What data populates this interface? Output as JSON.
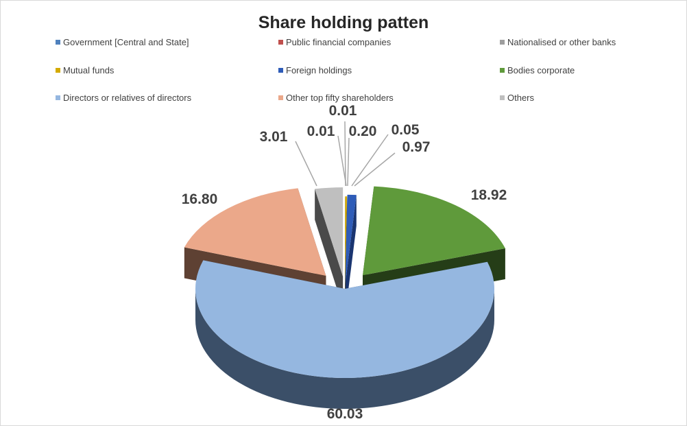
{
  "chart_data": {
    "type": "pie",
    "title": "Share holding patten",
    "categories": [
      "Government [Central and State]",
      "Public financial companies",
      "Nationalised or other banks",
      "Mutual funds",
      "Foreign holdings",
      "Bodies corporate",
      "Directors or relatives of directors",
      "Other top fifty shareholders",
      "Others"
    ],
    "values": [
      0.01,
      0.0,
      0.01,
      0.2,
      0.97,
      18.92,
      60.03,
      16.8,
      3.01
    ],
    "data_labels": [
      "0.01",
      "",
      "0.01",
      "0.20",
      "0.97",
      "18.92",
      "60.03",
      "16.80",
      "3.01"
    ],
    "extra_label": "0.05",
    "colors": [
      "#4f81bd",
      "#c0504d",
      "#9e9e9e",
      "#d4aa00",
      "#2e5cb8",
      "#5f9a3b",
      "#95b7e0",
      "#eba88a",
      "#bfbfbf"
    ],
    "side_colors": [
      "#2c4a70",
      "#6f2e2c",
      "#4a4a4a",
      "#7a6200",
      "#1a3570",
      "#253d17",
      "#3b4f68",
      "#5e4133",
      "#4a4a4a"
    ],
    "legend_position": "top",
    "style": "3d-exploded"
  }
}
